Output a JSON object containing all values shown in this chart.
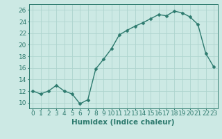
{
  "title": "",
  "xlabel": "Humidex (Indice chaleur)",
  "x": [
    0,
    1,
    2,
    3,
    4,
    5,
    6,
    7,
    8,
    9,
    10,
    11,
    12,
    13,
    14,
    15,
    16,
    17,
    18,
    19,
    20,
    21,
    22,
    23
  ],
  "y": [
    12,
    11.5,
    12,
    13,
    12,
    11.5,
    9.8,
    10.5,
    15.8,
    17.5,
    19.3,
    21.7,
    22.5,
    23.2,
    23.8,
    24.5,
    25.2,
    25.0,
    25.8,
    25.5,
    24.8,
    23.5,
    18.5,
    16.2
  ],
  "line_color": "#2d7a6e",
  "marker": "D",
  "marker_size": 2.5,
  "bg_color": "#cce9e4",
  "grid_color": "#aed4ce",
  "axis_color": "#2d7a6e",
  "ylim": [
    9,
    27
  ],
  "yticks": [
    10,
    12,
    14,
    16,
    18,
    20,
    22,
    24,
    26
  ],
  "xlim": [
    -0.5,
    23.5
  ],
  "xticks": [
    0,
    1,
    2,
    3,
    4,
    5,
    6,
    7,
    8,
    9,
    10,
    11,
    12,
    13,
    14,
    15,
    16,
    17,
    18,
    19,
    20,
    21,
    22,
    23
  ],
  "xlabel_fontsize": 7.5,
  "tick_fontsize": 6.5
}
